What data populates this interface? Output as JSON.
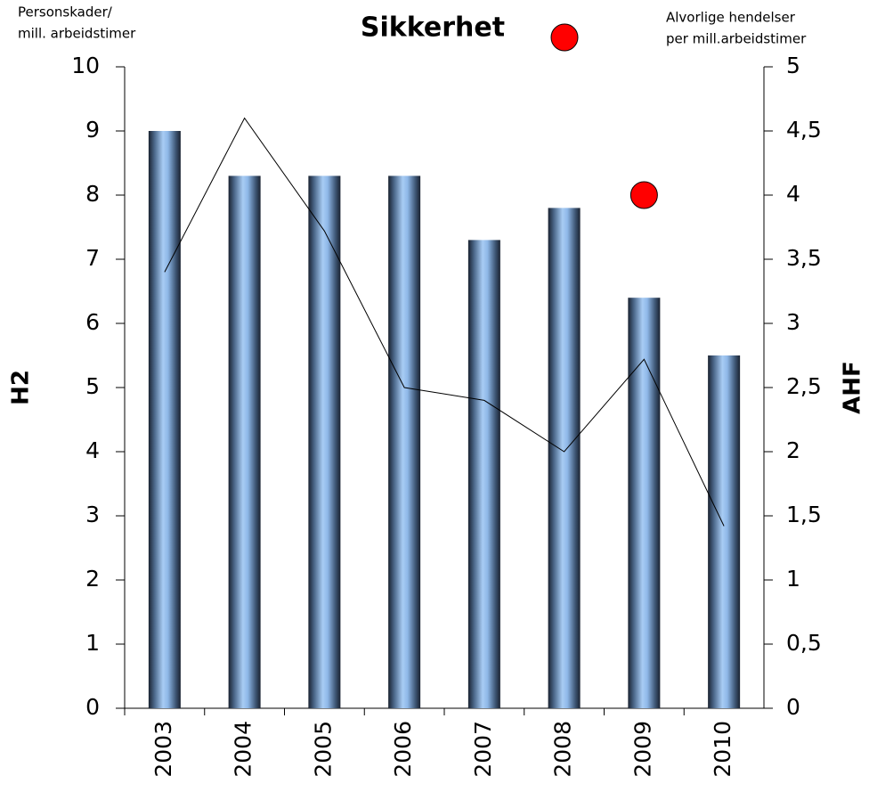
{
  "chart_data": {
    "type": "bar",
    "title": "Sikkerhet",
    "y_label_top": [
      "Personskader/",
      "mill. arbeidstimer"
    ],
    "y2_label_top": [
      "Alvorlige hendelser",
      "per mill.arbeidstimer"
    ],
    "ylabel": "H2",
    "y2label": "AHF",
    "categories": [
      "2003",
      "2004",
      "2005",
      "2006",
      "2007",
      "2008",
      "2009",
      "2010"
    ],
    "series": [
      {
        "type": "bar",
        "color": "#8fb8e8",
        "values": [
          9.0,
          8.3,
          8.3,
          8.3,
          7.3,
          7.8,
          6.4,
          5.5
        ]
      },
      {
        "type": "line",
        "axis": "y2",
        "color": "#000000",
        "values": [
          3.4,
          4.6,
          3.72,
          2.5,
          2.4,
          2.0,
          2.72,
          1.42
        ]
      },
      {
        "type": "scatter",
        "axis": "y2",
        "color": "#ff0000",
        "values": [
          null,
          null,
          null,
          null,
          null,
          null,
          4.0,
          null
        ]
      }
    ],
    "ylim": [
      0,
      10
    ],
    "yticks": [
      0,
      1,
      2,
      3,
      4,
      5,
      6,
      7,
      8,
      9,
      10
    ],
    "y2lim": [
      0,
      5
    ],
    "y2ticks": [
      0,
      {
        "value": 0.5,
        "label": "0,5"
      },
      1,
      {
        "value": 1.5,
        "label": "1,5"
      },
      2,
      {
        "value": 2.5,
        "label": "2,5"
      },
      3,
      {
        "value": 3.5,
        "label": "3,5"
      },
      4,
      {
        "value": 4.5,
        "label": "4,5"
      },
      5
    ]
  }
}
